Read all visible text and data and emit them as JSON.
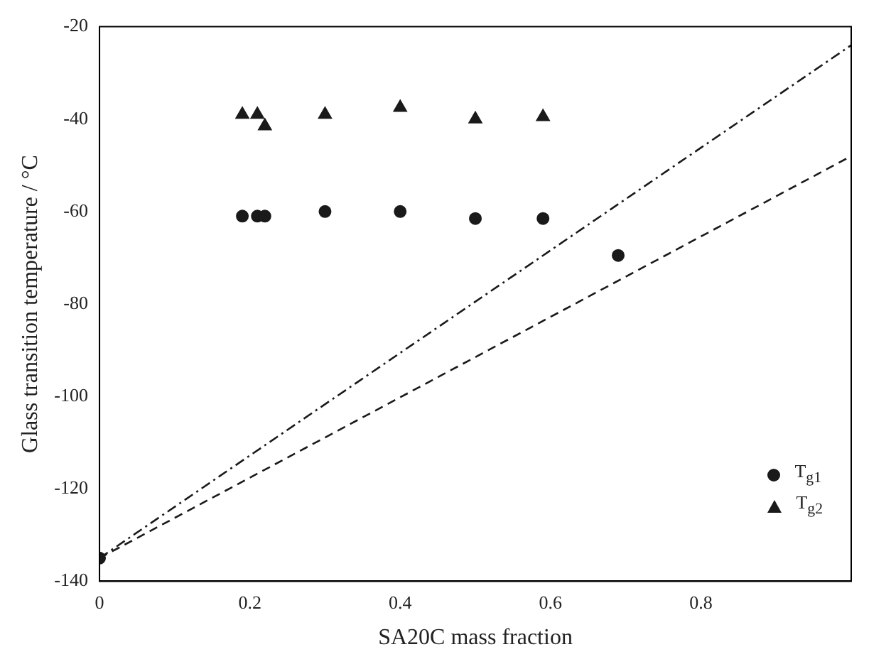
{
  "chart_data": {
    "type": "scatter",
    "xlabel": "SA20C mass fraction",
    "ylabel": "Glass transition temperature / °C",
    "xlim": [
      0,
      1
    ],
    "xticks": [
      0,
      0.2,
      0.4,
      0.6,
      0.8
    ],
    "ylim": [
      -140,
      -20
    ],
    "yticks": [
      -140,
      -120,
      -100,
      -80,
      -60,
      -40,
      -20
    ],
    "grid": false,
    "legend": "bottom right",
    "series": [
      {
        "name": "T$_{g1}$",
        "marker": "circle",
        "color": "#1a1a1a",
        "x": [
          0,
          0.19,
          0.21,
          0.22,
          0.3,
          0.4,
          0.5,
          0.59,
          0.69
        ],
        "values": [
          -135,
          -61,
          -61,
          -61,
          -60,
          -60,
          -61.5,
          -61.5,
          -69.5
        ]
      },
      {
        "name": "T$_{g2}$",
        "marker": "triangle",
        "color": "#1a1a1a",
        "x": [
          0.19,
          0.21,
          0.22,
          0.3,
          0.4,
          0.5,
          0.59
        ],
        "values": [
          -39,
          -39,
          -41.5,
          -39,
          -37.5,
          -40,
          -39.5
        ]
      },
      {
        "type": "line",
        "marker": "none",
        "line_style": "dotted",
        "color": "#1a1a1a",
        "x": [
          0,
          1
        ],
        "values": [
          -135,
          -24
        ]
      },
      {
        "type": "line",
        "marker": "none",
        "line_style": "dashed",
        "color": "#1a1a1a",
        "x": [
          0,
          1
        ],
        "values": [
          -135,
          -48
        ]
      }
    ]
  }
}
